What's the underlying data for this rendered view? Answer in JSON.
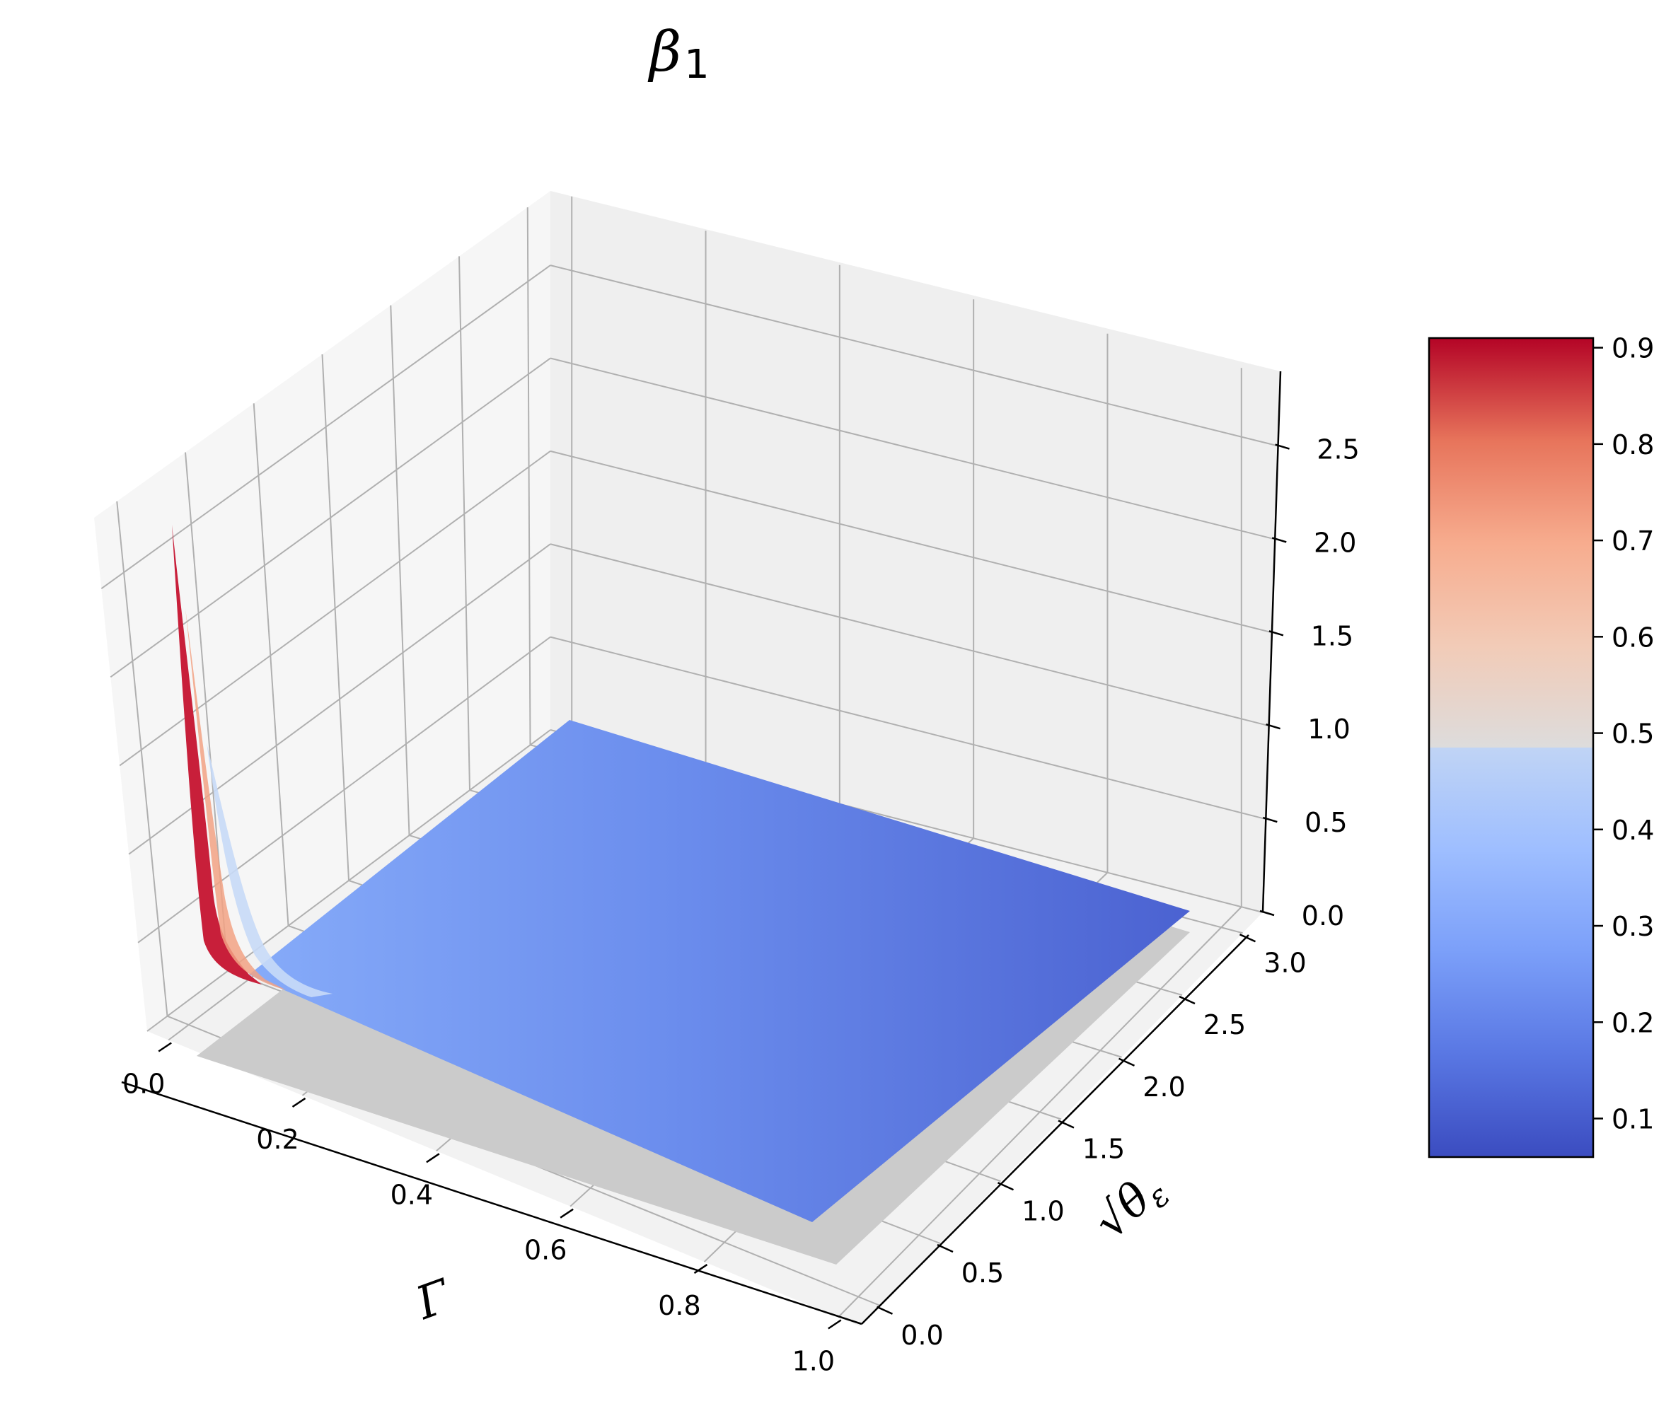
{
  "chart_data": {
    "type": "surface",
    "title": "β",
    "title_subscript": "1",
    "xlabel": "Γ",
    "ylabel": "√θ",
    "ylabel_subscript": "ε",
    "x_ticks": [
      "0.0",
      "0.2",
      "0.4",
      "0.6",
      "0.8",
      "1.0"
    ],
    "y_ticks": [
      "0.0",
      "0.5",
      "1.0",
      "1.5",
      "2.0",
      "2.5",
      "3.0"
    ],
    "z_ticks": [
      "0.0",
      "0.5",
      "1.0",
      "1.5",
      "2.0",
      "2.5"
    ],
    "colorbar_ticks": [
      "0.1",
      "0.2",
      "0.3",
      "0.4",
      "0.5",
      "0.6",
      "0.7",
      "0.8",
      "0.9"
    ],
    "xlim": [
      0,
      1
    ],
    "ylim": [
      0,
      3
    ],
    "zlim": [
      0,
      2.9
    ],
    "colorbar_range": [
      0.06,
      0.91
    ],
    "colormap": "coolwarm",
    "grid": true,
    "colorbar_placement": "right",
    "surface_samples": [
      {
        "x": 0.0,
        "z": 2.7
      },
      {
        "x": 0.02,
        "z": 0.9
      },
      {
        "x": 0.05,
        "z": 0.3
      },
      {
        "x": 0.2,
        "z": 0.15
      },
      {
        "x": 0.4,
        "z": 0.12
      },
      {
        "x": 0.6,
        "z": 0.1
      },
      {
        "x": 0.8,
        "z": 0.09
      },
      {
        "x": 1.0,
        "z": 0.08
      }
    ]
  }
}
